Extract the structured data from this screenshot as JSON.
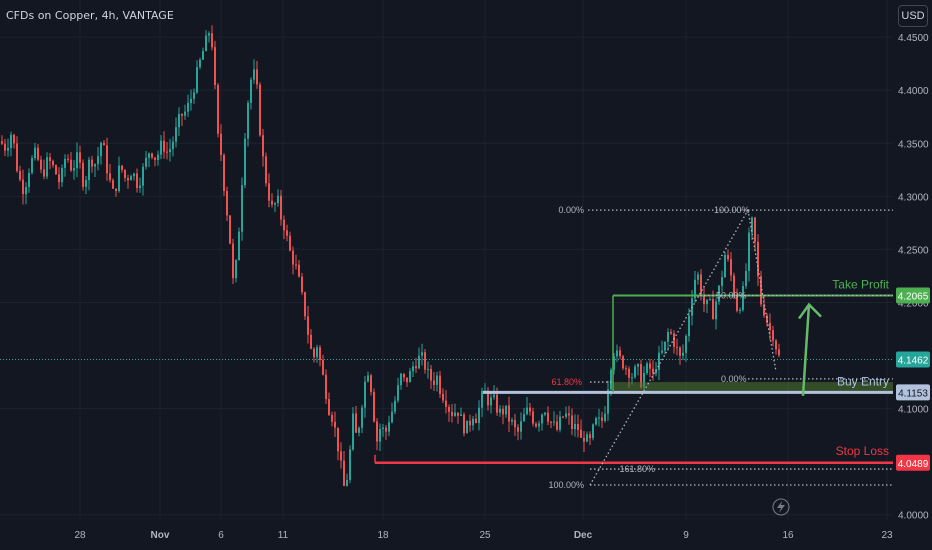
{
  "header": {
    "title": "CFDs on Copper, 4h, VANTAGE",
    "currency_button": "USD"
  },
  "colors": {
    "background": "#131722",
    "up": "#26a69a",
    "down": "#ef5350",
    "grid": "#1e222d",
    "take_profit": "#4caf50",
    "stop_loss": "#f23645",
    "entry": "#b2c2dc",
    "zone": "#4e7a30",
    "fib_dotted": "#b2b5be",
    "price_line": "#26a69a",
    "arrow": "#66bb6a",
    "axis_text": "#b2b5be"
  },
  "chart_data": {
    "type": "candlestick",
    "symbol": "CFDs on Copper",
    "interval": "4h",
    "ylim": [
      3.995,
      4.485
    ],
    "y_ticks": [
      "4.4500",
      "4.4000",
      "4.3500",
      "4.3000",
      "4.2500",
      "4.2000",
      "4.1000",
      "4.0000"
    ],
    "x_ticks": [
      "28",
      "Nov",
      "6",
      "11",
      "18",
      "25",
      "Dec",
      "9",
      "16",
      "23"
    ],
    "x_tick_bold": [
      "Nov",
      "Dec"
    ],
    "close_path": [
      [
        0,
        4.352
      ],
      [
        6,
        4.345
      ],
      [
        12,
        4.362
      ],
      [
        18,
        4.32
      ],
      [
        24,
        4.305
      ],
      [
        30,
        4.33
      ],
      [
        36,
        4.342
      ],
      [
        42,
        4.318
      ],
      [
        48,
        4.335
      ],
      [
        54,
        4.326
      ],
      [
        60,
        4.312
      ],
      [
        66,
        4.34
      ],
      [
        72,
        4.325
      ],
      [
        78,
        4.338
      ],
      [
        84,
        4.31
      ],
      [
        90,
        4.336
      ],
      [
        96,
        4.33
      ],
      [
        102,
        4.355
      ],
      [
        108,
        4.32
      ],
      [
        114,
        4.3
      ],
      [
        120,
        4.33
      ],
      [
        126,
        4.315
      ],
      [
        132,
        4.325
      ],
      [
        138,
        4.31
      ],
      [
        144,
        4.328
      ],
      [
        150,
        4.345
      ],
      [
        156,
        4.335
      ],
      [
        162,
        4.35
      ],
      [
        168,
        4.34
      ],
      [
        174,
        4.355
      ],
      [
        180,
        4.375
      ],
      [
        186,
        4.38
      ],
      [
        192,
        4.395
      ],
      [
        198,
        4.42
      ],
      [
        204,
        4.44
      ],
      [
        209,
        4.455
      ],
      [
        213,
        4.44
      ],
      [
        217,
        4.36
      ],
      [
        221,
        4.34
      ],
      [
        225,
        4.3
      ],
      [
        229,
        4.27
      ],
      [
        233,
        4.22
      ],
      [
        237,
        4.24
      ],
      [
        241,
        4.3
      ],
      [
        245,
        4.36
      ],
      [
        249,
        4.4
      ],
      [
        253,
        4.42
      ],
      [
        257,
        4.4
      ],
      [
        261,
        4.35
      ],
      [
        265,
        4.32
      ],
      [
        269,
        4.3
      ],
      [
        273,
        4.285
      ],
      [
        277,
        4.3
      ],
      [
        281,
        4.28
      ],
      [
        285,
        4.27
      ],
      [
        289,
        4.25
      ],
      [
        293,
        4.24
      ],
      [
        297,
        4.23
      ],
      [
        301,
        4.21
      ],
      [
        305,
        4.19
      ],
      [
        309,
        4.165
      ],
      [
        313,
        4.145
      ],
      [
        317,
        4.16
      ],
      [
        321,
        4.14
      ],
      [
        325,
        4.12
      ],
      [
        329,
        4.1
      ],
      [
        333,
        4.09
      ],
      [
        337,
        4.07
      ],
      [
        341,
        4.045
      ],
      [
        345,
        4.02
      ],
      [
        349,
        4.05
      ],
      [
        353,
        4.09
      ],
      [
        357,
        4.07
      ],
      [
        361,
        4.1
      ],
      [
        365,
        4.125
      ],
      [
        369,
        4.14
      ],
      [
        373,
        4.1
      ],
      [
        377,
        4.07
      ],
      [
        381,
        4.085
      ],
      [
        385,
        4.075
      ],
      [
        389,
        4.09
      ],
      [
        393,
        4.1
      ],
      [
        397,
        4.115
      ],
      [
        401,
        4.13
      ],
      [
        405,
        4.125
      ],
      [
        409,
        4.13
      ],
      [
        413,
        4.14
      ],
      [
        417,
        4.145
      ],
      [
        421,
        4.15
      ],
      [
        425,
        4.14
      ],
      [
        429,
        4.13
      ],
      [
        433,
        4.125
      ],
      [
        437,
        4.13
      ],
      [
        441,
        4.115
      ],
      [
        445,
        4.11
      ],
      [
        449,
        4.1
      ],
      [
        453,
        4.095
      ],
      [
        457,
        4.1
      ],
      [
        461,
        4.09
      ],
      [
        465,
        4.08
      ],
      [
        469,
        4.085
      ],
      [
        473,
        4.095
      ],
      [
        477,
        4.09
      ],
      [
        481,
        4.11
      ],
      [
        485,
        4.115
      ],
      [
        489,
        4.105
      ],
      [
        493,
        4.11
      ],
      [
        497,
        4.1
      ],
      [
        501,
        4.095
      ],
      [
        505,
        4.1
      ],
      [
        509,
        4.09
      ],
      [
        513,
        4.085
      ],
      [
        517,
        4.075
      ],
      [
        521,
        4.085
      ],
      [
        525,
        4.095
      ],
      [
        529,
        4.1
      ],
      [
        533,
        4.09
      ],
      [
        537,
        4.085
      ],
      [
        541,
        4.095
      ],
      [
        545,
        4.1
      ],
      [
        549,
        4.09
      ],
      [
        553,
        4.085
      ],
      [
        557,
        4.08
      ],
      [
        561,
        4.09
      ],
      [
        565,
        4.095
      ],
      [
        569,
        4.09
      ],
      [
        573,
        4.08
      ],
      [
        577,
        4.085
      ],
      [
        581,
        4.07
      ],
      [
        585,
        4.075
      ],
      [
        589,
        4.065
      ],
      [
        593,
        4.08
      ],
      [
        597,
        4.09
      ],
      [
        601,
        4.085
      ],
      [
        605,
        4.1
      ],
      [
        609,
        4.13
      ],
      [
        613,
        4.155
      ],
      [
        617,
        4.15
      ],
      [
        621,
        4.145
      ],
      [
        625,
        4.14
      ],
      [
        629,
        4.135
      ],
      [
        633,
        4.13
      ],
      [
        637,
        4.14
      ],
      [
        641,
        4.125
      ],
      [
        645,
        4.135
      ],
      [
        649,
        4.14
      ],
      [
        653,
        4.13
      ],
      [
        657,
        4.145
      ],
      [
        661,
        4.15
      ],
      [
        665,
        4.16
      ],
      [
        669,
        4.175
      ],
      [
        673,
        4.165
      ],
      [
        677,
        4.155
      ],
      [
        681,
        4.145
      ],
      [
        685,
        4.16
      ],
      [
        689,
        4.19
      ],
      [
        693,
        4.215
      ],
      [
        697,
        4.23
      ],
      [
        701,
        4.21
      ],
      [
        705,
        4.195
      ],
      [
        709,
        4.2
      ],
      [
        713,
        4.19
      ],
      [
        717,
        4.205
      ],
      [
        721,
        4.22
      ],
      [
        725,
        4.245
      ],
      [
        729,
        4.235
      ],
      [
        733,
        4.215
      ],
      [
        737,
        4.195
      ],
      [
        741,
        4.2
      ],
      [
        745,
        4.22
      ],
      [
        749,
        4.26
      ],
      [
        753,
        4.28
      ],
      [
        757,
        4.23
      ],
      [
        761,
        4.2
      ],
      [
        765,
        4.19
      ],
      [
        769,
        4.175
      ],
      [
        773,
        4.17
      ],
      [
        777,
        4.155
      ],
      [
        780,
        4.145
      ]
    ],
    "current_price": "4.1462",
    "levels": [
      {
        "name": "Take Profit",
        "price": 4.2065,
        "price_label": "4.2065"
      },
      {
        "name": "Buy Entry",
        "price": 4.1153,
        "price_label": "4.1153"
      },
      {
        "name": "Stop Loss",
        "price": 4.0489,
        "price_label": "4.0489"
      }
    ],
    "entry_zone": [
      4.1153,
      4.125
    ],
    "fib_top": {
      "labels": [
        {
          "text": "0.00%",
          "price": 4.287
        },
        {
          "text": "100.00%",
          "price": 4.287
        },
        {
          "text": "50.00%",
          "price": 4.2065
        },
        {
          "text": "0.00%",
          "price": 4.128
        }
      ]
    },
    "fib_bottom": {
      "labels": [
        {
          "text": "61.80%",
          "price": 4.125
        },
        {
          "text": "161.80%",
          "price": 4.043
        },
        {
          "text": "100.00%",
          "price": 4.028
        }
      ]
    }
  }
}
